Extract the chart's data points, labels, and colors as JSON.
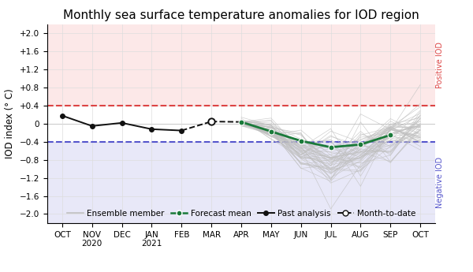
{
  "title": "Monthly sea surface temperature anomalies for IOD region",
  "ylabel": "IOD index (° C)",
  "positive_label": "Positive IOD",
  "negative_label": "Negative IOD",
  "positive_threshold": 0.4,
  "negative_threshold": -0.4,
  "ylim": [
    -2.2,
    2.2
  ],
  "yticks": [
    -2.0,
    -1.6,
    -1.2,
    -0.8,
    -0.4,
    0.0,
    0.4,
    0.8,
    1.2,
    1.6,
    2.0
  ],
  "ytick_labels": [
    "−2.0",
    "−1.6",
    "−1.2",
    "−0.8",
    "−0.4",
    "0",
    "+0.4",
    "+0.8",
    "+1.2",
    "+1.6",
    "+2.0"
  ],
  "x_labels": [
    "OCT",
    "NOV\n2020",
    "DEC",
    "JAN\n2021",
    "FEB",
    "MAR",
    "APR",
    "MAY",
    "JUN",
    "JUL",
    "AUG",
    "SEP",
    "OCT"
  ],
  "x_positions": [
    0,
    1,
    2,
    3,
    4,
    5,
    6,
    7,
    8,
    9,
    10,
    11,
    12
  ],
  "past_analysis_x": [
    0,
    1,
    2,
    3,
    4
  ],
  "past_analysis_y": [
    0.18,
    -0.05,
    0.02,
    -0.12,
    -0.15
  ],
  "month_to_date_x": [
    5
  ],
  "month_to_date_y": [
    0.05
  ],
  "forecast_mean_x": [
    6,
    7,
    8,
    9,
    10,
    11
  ],
  "forecast_mean_y": [
    0.04,
    -0.17,
    -0.38,
    -0.52,
    -0.46,
    -0.25
  ],
  "positive_bg_color": "#fce8e8",
  "negative_bg_color": "#e8e8f8",
  "pos_threshold_color": "#dd4444",
  "neg_threshold_color": "#5555cc",
  "ensemble_color": "#c0c0c0",
  "forecast_mean_color": "#1a7a3a",
  "past_analysis_color": "#111111",
  "month_to_date_color": "#111111",
  "title_fontsize": 11,
  "label_fontsize": 8.5,
  "tick_fontsize": 7.5,
  "legend_fontsize": 7.5,
  "side_label_fontsize": 7
}
